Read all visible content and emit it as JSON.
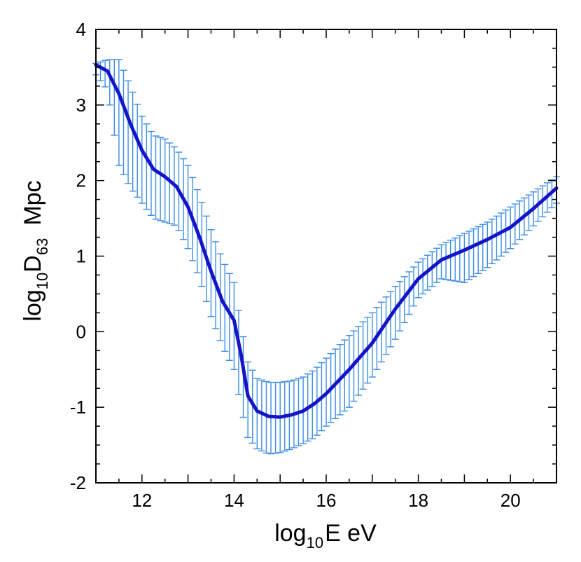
{
  "chart_data": {
    "type": "line",
    "title": "",
    "xlabel": {
      "prefix": "log",
      "sub": "10",
      "suffix": "E eV"
    },
    "ylabel": {
      "prefix": "log",
      "sub1": "10",
      "mid": "D",
      "sub2": "63",
      "suffix": "Mpc"
    },
    "xlim": [
      11,
      21
    ],
    "ylim": [
      -2,
      4
    ],
    "xticks": [
      12,
      14,
      16,
      18,
      20
    ],
    "yticks": [
      -2,
      -1,
      0,
      1,
      2,
      3,
      4
    ],
    "grid": false,
    "colors": {
      "line": "#1414c8",
      "errorbar": "#3c8ce6",
      "axis": "#000000"
    },
    "series": [
      {
        "name": "log10 D63",
        "x": [
          11.0,
          11.25,
          11.5,
          11.75,
          12.0,
          12.25,
          12.5,
          12.75,
          13.0,
          13.25,
          13.5,
          13.75,
          14.0,
          14.15,
          14.3,
          14.5,
          14.75,
          15.0,
          15.25,
          15.5,
          15.75,
          16.0,
          16.5,
          17.0,
          17.5,
          18.0,
          18.5,
          19.0,
          19.5,
          20.0,
          20.5,
          21.0
        ],
        "y": [
          3.53,
          3.45,
          3.15,
          2.75,
          2.4,
          2.15,
          2.05,
          1.92,
          1.65,
          1.25,
          0.8,
          0.4,
          0.15,
          -0.3,
          -0.85,
          -1.05,
          -1.12,
          -1.13,
          -1.1,
          -1.05,
          -0.95,
          -0.82,
          -0.5,
          -0.15,
          0.3,
          0.7,
          0.95,
          1.08,
          1.22,
          1.38,
          1.63,
          1.9
        ],
        "err_low": [
          3.4,
          3.2,
          2.2,
          1.9,
          1.7,
          1.5,
          1.45,
          1.4,
          1.1,
          0.7,
          0.2,
          -0.2,
          -0.5,
          -1.0,
          -1.4,
          -1.55,
          -1.62,
          -1.6,
          -1.55,
          -1.48,
          -1.4,
          -1.25,
          -1.0,
          -0.6,
          -0.1,
          0.45,
          0.7,
          0.65,
          0.85,
          1.1,
          1.4,
          1.7
        ],
        "err_high": [
          3.55,
          3.6,
          3.6,
          3.25,
          2.85,
          2.6,
          2.55,
          2.42,
          2.2,
          1.8,
          1.35,
          0.95,
          0.65,
          0.1,
          -0.4,
          -0.62,
          -0.67,
          -0.67,
          -0.65,
          -0.6,
          -0.5,
          -0.35,
          -0.05,
          0.25,
          0.6,
          0.92,
          1.15,
          1.3,
          1.45,
          1.65,
          1.85,
          2.05
        ]
      }
    ]
  }
}
